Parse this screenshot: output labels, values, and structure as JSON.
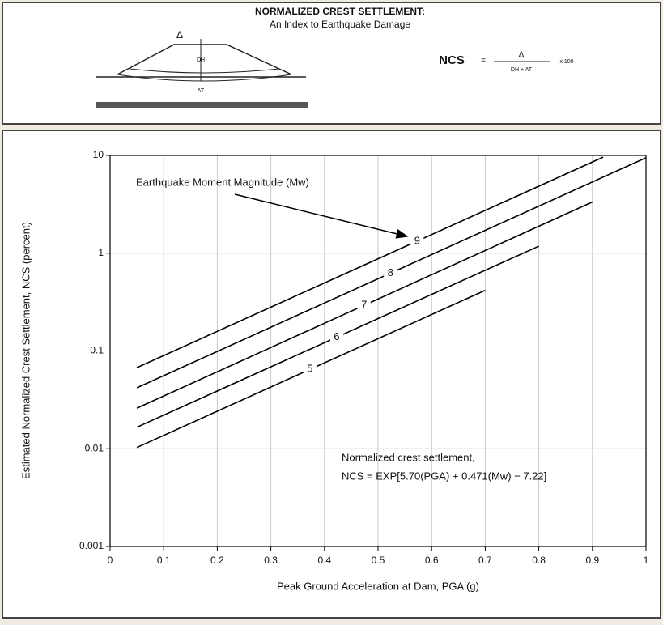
{
  "header": {
    "title": "NORMALIZED CREST SETTLEMENT:",
    "subtitle": "An Index to Earthquake Damage",
    "diagram_delta": "Δ",
    "diagram_dh": "DH",
    "diagram_at": "AT",
    "formula_lhs": "NCS",
    "formula_eq": "=",
    "formula_num": "Δ",
    "formula_den": "DH + AT",
    "formula_mult": "x 100"
  },
  "chart_data": {
    "type": "line",
    "log_y": true,
    "grid": true,
    "x_label": "Peak Ground Acceleration at Dam, PGA (g)",
    "y_label": "Estimated Normalized Crest Settlement, NCS  (percent)",
    "annotations": [
      "Earthquake Moment Magnitude (Mw)",
      "Normalized crest settlement,",
      "NCS = EXP[5.70(PGA) + 0.471(Mw)  − 7.22]"
    ],
    "xlim": [
      0,
      1
    ],
    "xticks": [
      0,
      0.1,
      0.2,
      0.3,
      0.4,
      0.5,
      0.6,
      0.7,
      0.8,
      0.9,
      1
    ],
    "ylim": [
      0.001,
      10
    ],
    "yticks": [
      0.001,
      0.01,
      0.1,
      1,
      10
    ],
    "series": [
      {
        "name": "9",
        "color": "#000000",
        "x": [
          0.05,
          0.92
        ],
        "values": [
          0.0675,
          9.6
        ]
      },
      {
        "name": "8",
        "color": "#000000",
        "x": [
          0.05,
          1.0
        ],
        "values": [
          0.042,
          9.47
        ]
      },
      {
        "name": "7",
        "color": "#000000",
        "x": [
          0.05,
          0.9
        ],
        "values": [
          0.026,
          3.34
        ]
      },
      {
        "name": "6",
        "color": "#000000",
        "x": [
          0.05,
          0.8
        ],
        "values": [
          0.0166,
          1.18
        ]
      },
      {
        "name": "5",
        "color": "#000000",
        "x": [
          0.05,
          0.7
        ],
        "values": [
          0.0103,
          0.417
        ]
      }
    ]
  }
}
